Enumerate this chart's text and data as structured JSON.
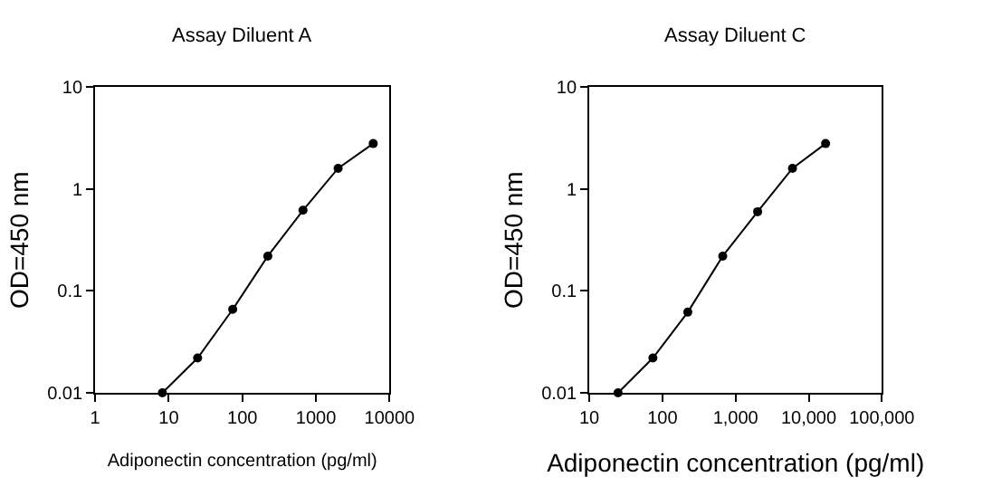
{
  "chart_data": [
    {
      "type": "line",
      "title": "Assay Diluent A",
      "xlabel": "Adiponectin concentration (pg/ml)",
      "ylabel": "OD=450 nm",
      "log": "xy",
      "marker": "circle",
      "line_style": "solid",
      "x": [
        8.2,
        24.7,
        74,
        222,
        667,
        2000,
        6000
      ],
      "series": [
        {
          "color": "#000000",
          "values": [
            0.01,
            0.022,
            0.066,
            0.22,
            0.62,
            1.6,
            2.8
          ]
        }
      ],
      "xlim": [
        1,
        10000
      ],
      "xticks": [
        1,
        10,
        100,
        1000,
        10000
      ],
      "ylim": [
        0.01,
        10
      ],
      "yticks": [
        0.01,
        0.1,
        1,
        10
      ]
    },
    {
      "type": "line",
      "title": "Assay Diluent C",
      "xlabel": "Adiponectin concentration (pg/ml)",
      "ylabel": "OD=450 nm",
      "log": "xy",
      "marker": "circle",
      "line_style": "solid",
      "x": [
        24.7,
        74,
        222,
        667,
        2000,
        6000,
        17000
      ],
      "series": [
        {
          "color": "#000000",
          "values": [
            0.01,
            0.022,
            0.062,
            0.22,
            0.6,
            1.6,
            2.8
          ]
        }
      ],
      "xlim": [
        10,
        100000
      ],
      "xticks": [
        10,
        100,
        {
          "value": 1000,
          "label": "1,000"
        },
        {
          "value": 10000,
          "label": "10,000"
        },
        {
          "value": 100000,
          "label": "100,000"
        }
      ],
      "ylim": [
        0.01,
        10
      ],
      "yticks": [
        0.01,
        0.1,
        1,
        10
      ]
    }
  ]
}
